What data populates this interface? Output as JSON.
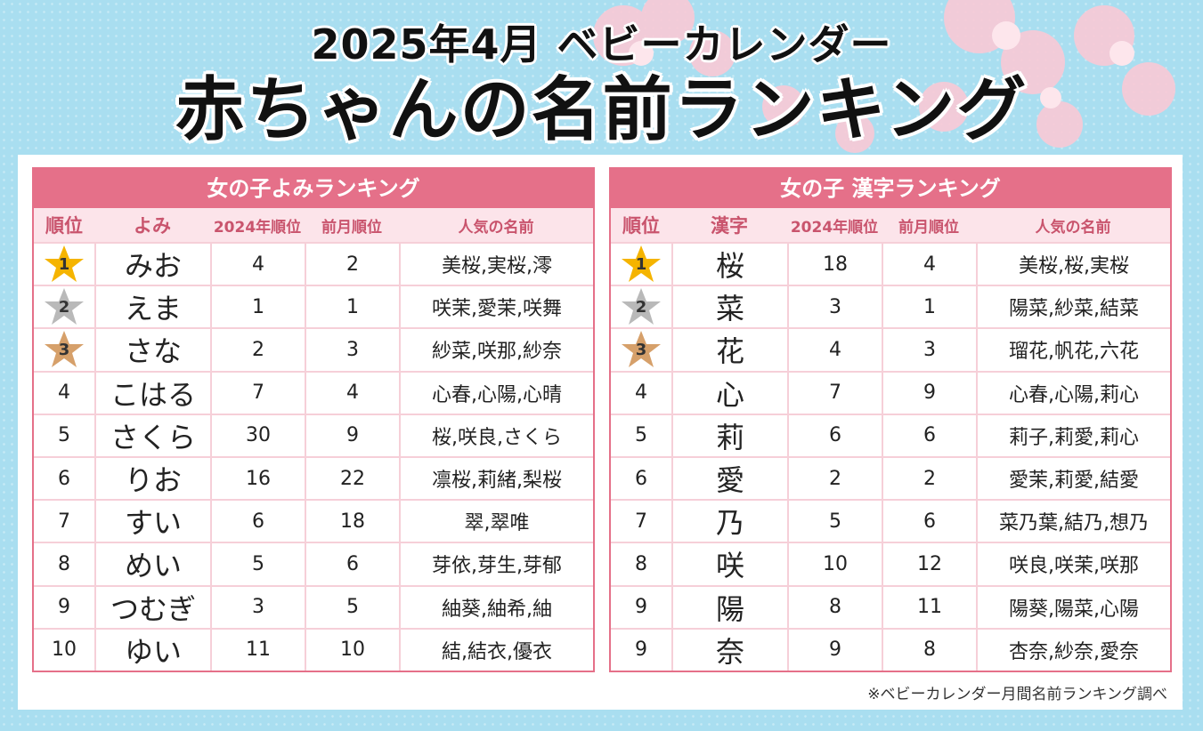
{
  "title": {
    "line1": "2025年4月 ベビーカレンダー",
    "line2": "赤ちゃんの名前ランキング"
  },
  "colors": {
    "accent": "#e57089",
    "header_bg": "#fce4ea",
    "gold": "#f5b400",
    "silver": "#b9b9b9",
    "bronze": "#d6a06a"
  },
  "left_table": {
    "title": "女の子よみランキング",
    "headers": [
      "順位",
      "よみ",
      "2024年順位",
      "前月順位",
      "人気の名前"
    ],
    "rows": [
      {
        "rank": "1",
        "name": "みお",
        "y2024": "4",
        "prev": "2",
        "popular": "美桜,実桜,澪"
      },
      {
        "rank": "2",
        "name": "えま",
        "y2024": "1",
        "prev": "1",
        "popular": "咲茉,愛茉,咲舞"
      },
      {
        "rank": "3",
        "name": "さな",
        "y2024": "2",
        "prev": "3",
        "popular": "紗菜,咲那,紗奈"
      },
      {
        "rank": "4",
        "name": "こはる",
        "y2024": "7",
        "prev": "4",
        "popular": "心春,心陽,心晴"
      },
      {
        "rank": "5",
        "name": "さくら",
        "y2024": "30",
        "prev": "9",
        "popular": "桜,咲良,さくら"
      },
      {
        "rank": "6",
        "name": "りお",
        "y2024": "16",
        "prev": "22",
        "popular": "凛桜,莉緒,梨桜"
      },
      {
        "rank": "7",
        "name": "すい",
        "y2024": "6",
        "prev": "18",
        "popular": "翠,翠唯"
      },
      {
        "rank": "8",
        "name": "めい",
        "y2024": "5",
        "prev": "6",
        "popular": "芽依,芽生,芽郁"
      },
      {
        "rank": "9",
        "name": "つむぎ",
        "y2024": "3",
        "prev": "5",
        "popular": "紬葵,紬希,紬"
      },
      {
        "rank": "10",
        "name": "ゆい",
        "y2024": "11",
        "prev": "10",
        "popular": "結,結衣,優衣"
      }
    ]
  },
  "right_table": {
    "title": "女の子 漢字ランキング",
    "headers": [
      "順位",
      "漢字",
      "2024年順位",
      "前月順位",
      "人気の名前"
    ],
    "rows": [
      {
        "rank": "1",
        "name": "桜",
        "y2024": "18",
        "prev": "4",
        "popular": "美桜,桜,実桜"
      },
      {
        "rank": "2",
        "name": "菜",
        "y2024": "3",
        "prev": "1",
        "popular": "陽菜,紗菜,結菜"
      },
      {
        "rank": "3",
        "name": "花",
        "y2024": "4",
        "prev": "3",
        "popular": "瑠花,帆花,六花"
      },
      {
        "rank": "4",
        "name": "心",
        "y2024": "7",
        "prev": "9",
        "popular": "心春,心陽,莉心"
      },
      {
        "rank": "5",
        "name": "莉",
        "y2024": "6",
        "prev": "6",
        "popular": "莉子,莉愛,莉心"
      },
      {
        "rank": "6",
        "name": "愛",
        "y2024": "2",
        "prev": "2",
        "popular": "愛茉,莉愛,結愛"
      },
      {
        "rank": "7",
        "name": "乃",
        "y2024": "5",
        "prev": "6",
        "popular": "菜乃葉,結乃,想乃"
      },
      {
        "rank": "8",
        "name": "咲",
        "y2024": "10",
        "prev": "12",
        "popular": "咲良,咲茉,咲那"
      },
      {
        "rank": "9",
        "name": "陽",
        "y2024": "8",
        "prev": "11",
        "popular": "陽葵,陽菜,心陽"
      },
      {
        "rank": "9",
        "name": "奈",
        "y2024": "9",
        "prev": "8",
        "popular": "杏奈,紗奈,愛奈"
      }
    ]
  },
  "footnote": "※ベビーカレンダー月間名前ランキング調べ"
}
